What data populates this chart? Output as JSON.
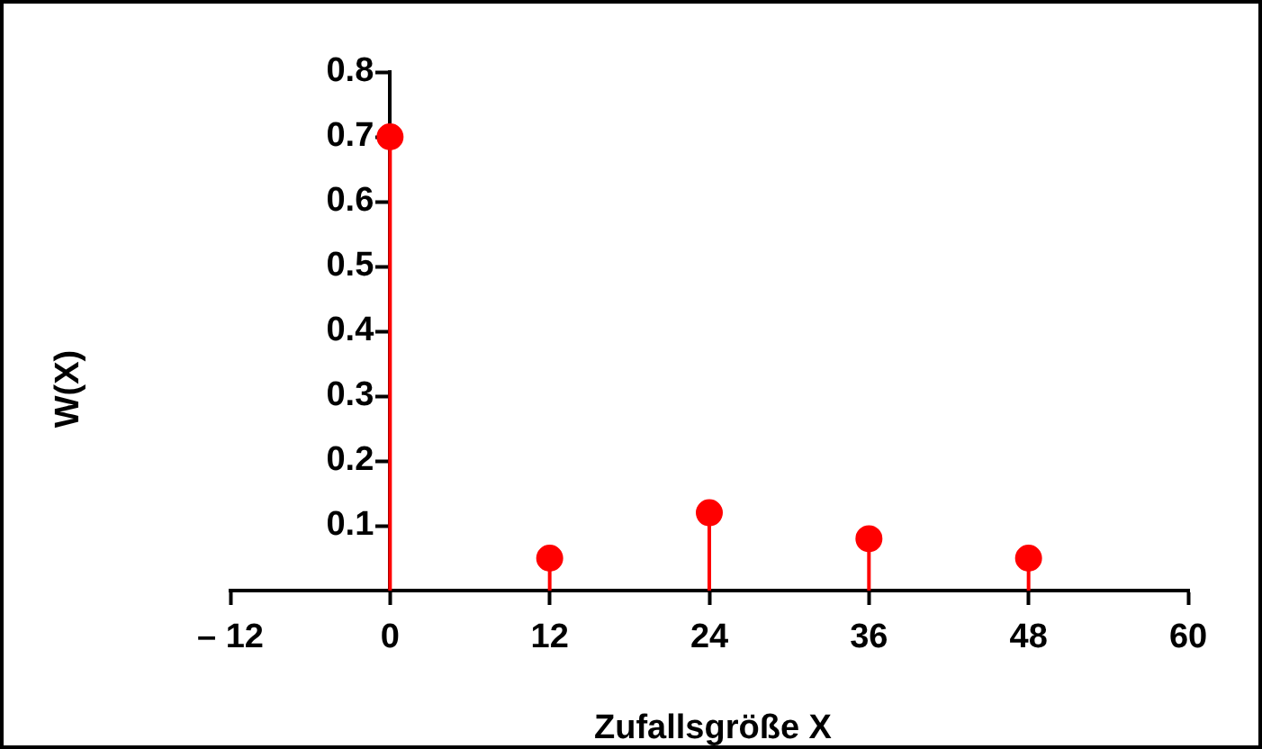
{
  "chart_data": {
    "type": "lollipop",
    "xlabel": "Zufallsgröße X",
    "ylabel": "W(X)",
    "x": [
      0,
      12,
      24,
      36,
      48
    ],
    "series": [
      {
        "color": "#ff0000",
        "values": [
          0.7,
          0.05,
          0.12,
          0.08,
          0.05
        ]
      }
    ],
    "xlim": [
      -12,
      60
    ],
    "xticks": [
      {
        "value": -12,
        "label": "– 12"
      },
      0,
      12,
      24,
      36,
      48,
      60
    ],
    "ylim": [
      0,
      0.8
    ],
    "yticks": [
      0.1,
      0.2,
      0.3,
      0.4,
      0.5,
      0.6,
      0.7,
      0.8
    ],
    "grid": false,
    "legend": false,
    "marker": "circle"
  }
}
